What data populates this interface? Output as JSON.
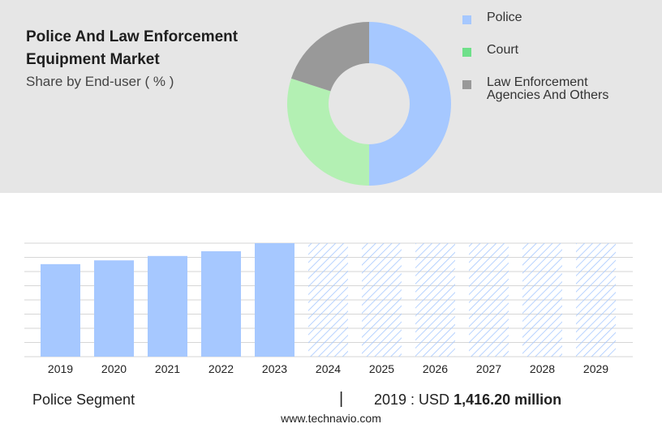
{
  "header": {
    "title": "Police And Law Enforcement Equipment Market",
    "subtitle": "Share by End-user ( % )"
  },
  "colors": {
    "police": "#a6c8ff",
    "court": "#b3f0b3",
    "others": "#999999",
    "legend_court": "#6fe08a",
    "forecast_hatch": "#a6c8ff"
  },
  "chart_data": [
    {
      "type": "pie",
      "variant": "donut",
      "legend_position": "right",
      "series": [
        {
          "name": "Police",
          "value": 50,
          "color": "#a6c8ff",
          "legend_color": "#a6c8ff"
        },
        {
          "name": "Court",
          "value": 30,
          "color": "#b3f0b3",
          "legend_color": "#6fe08a"
        },
        {
          "name": "Law Enforcement Agencies And Others",
          "value": 20,
          "color": "#999999",
          "legend_color": "#999999"
        }
      ],
      "legend_lines": [
        [
          "Police"
        ],
        [
          "Court"
        ],
        [
          "Law Enforcement",
          "Agencies And Others"
        ]
      ]
    },
    {
      "type": "bar",
      "categories": [
        "2019",
        "2020",
        "2021",
        "2022",
        "2023",
        "2024",
        "2025",
        "2026",
        "2027",
        "2028",
        "2029"
      ],
      "values": [
        1416.2,
        1474,
        1541,
        1614,
        1737,
        1737,
        1737,
        1737,
        1737,
        1737,
        1737
      ],
      "forecast": [
        false,
        false,
        false,
        false,
        false,
        true,
        true,
        true,
        true,
        true,
        true
      ],
      "ylim": [
        0,
        1737
      ],
      "grid": true,
      "y_axis_labels_shown": false
    }
  ],
  "footer": {
    "segment_label": "Police Segment",
    "separator": "|",
    "value_prefix": "2019 : USD",
    "value_bold": "1,416.20 million",
    "website": "www.technavio.com"
  }
}
